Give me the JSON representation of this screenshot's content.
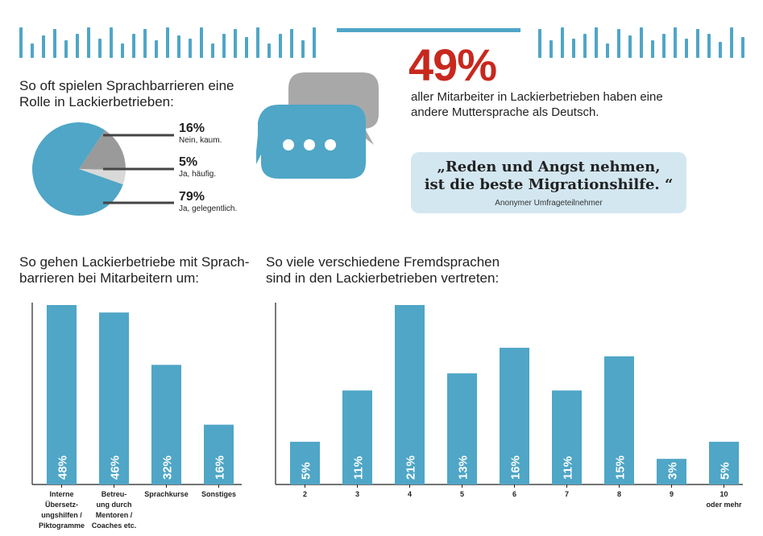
{
  "colors": {
    "accent": "#4fa6c6",
    "highlight": "#c8281e",
    "pie_gray": "#9a9a9a",
    "pie_light": "#d9d9d9",
    "quote_bg": "#d3e7f1"
  },
  "stat": {
    "value": "49%",
    "text_line1": "aller Mitarbeiter in Lackierbetrieben haben eine",
    "text_line2": "andere Muttersprache als Deutsch."
  },
  "quote": {
    "line1": "„Reden und Angst nehmen,",
    "line2": "ist die beste Migrationshilfe. “",
    "author": "Anonymer Umfrageteilnehmer"
  },
  "icons": {
    "speech": "speech-bubbles-icon"
  },
  "chart_data": [
    {
      "type": "pie",
      "title_line1": "So oft spielen Sprachbarrieren eine",
      "title_line2": "Rolle in Lackierbetrieben:",
      "slices": [
        {
          "label": "Nein, kaum.",
          "value": 16,
          "display": "16%",
          "color": "#9a9a9a"
        },
        {
          "label": "Ja, häufig.",
          "value": 5,
          "display": "5%",
          "color": "#d9d9d9"
        },
        {
          "label": "Ja, gelegentlich.",
          "value": 79,
          "display": "79%",
          "color": "#4fa6c6"
        }
      ]
    },
    {
      "type": "bar",
      "title_line1": "So gehen Lackierbetriebe mit Sprach-",
      "title_line2": "barrieren bei Mitarbeitern um:",
      "categories": [
        [
          "Interne",
          "Übersetz-",
          "ungshilfen /",
          "Piktogramme"
        ],
        [
          "Betreu-",
          "ung durch",
          "Mentoren /",
          "Coaches etc."
        ],
        [
          "Sprachkurse"
        ],
        [
          "Sonstiges"
        ]
      ],
      "values": [
        48,
        46,
        32,
        16
      ],
      "labels": [
        "48%",
        "46%",
        "32%",
        "16%"
      ],
      "ylim": [
        0,
        48
      ]
    },
    {
      "type": "bar",
      "title_line1": "So viele verschiedene Fremdsprachen",
      "title_line2": "sind in den Lackierbetrieben vertreten:",
      "categories": [
        [
          "2"
        ],
        [
          "3"
        ],
        [
          "4"
        ],
        [
          "5"
        ],
        [
          "6"
        ],
        [
          "7"
        ],
        [
          "8"
        ],
        [
          "9"
        ],
        [
          "10",
          "oder mehr"
        ]
      ],
      "values": [
        5,
        11,
        21,
        13,
        16,
        11,
        15,
        3,
        5
      ],
      "labels": [
        "5%",
        "11%",
        "21%",
        "13%",
        "16%",
        "11%",
        "15%",
        "3%",
        "5%"
      ],
      "ylim": [
        0,
        21
      ]
    }
  ]
}
